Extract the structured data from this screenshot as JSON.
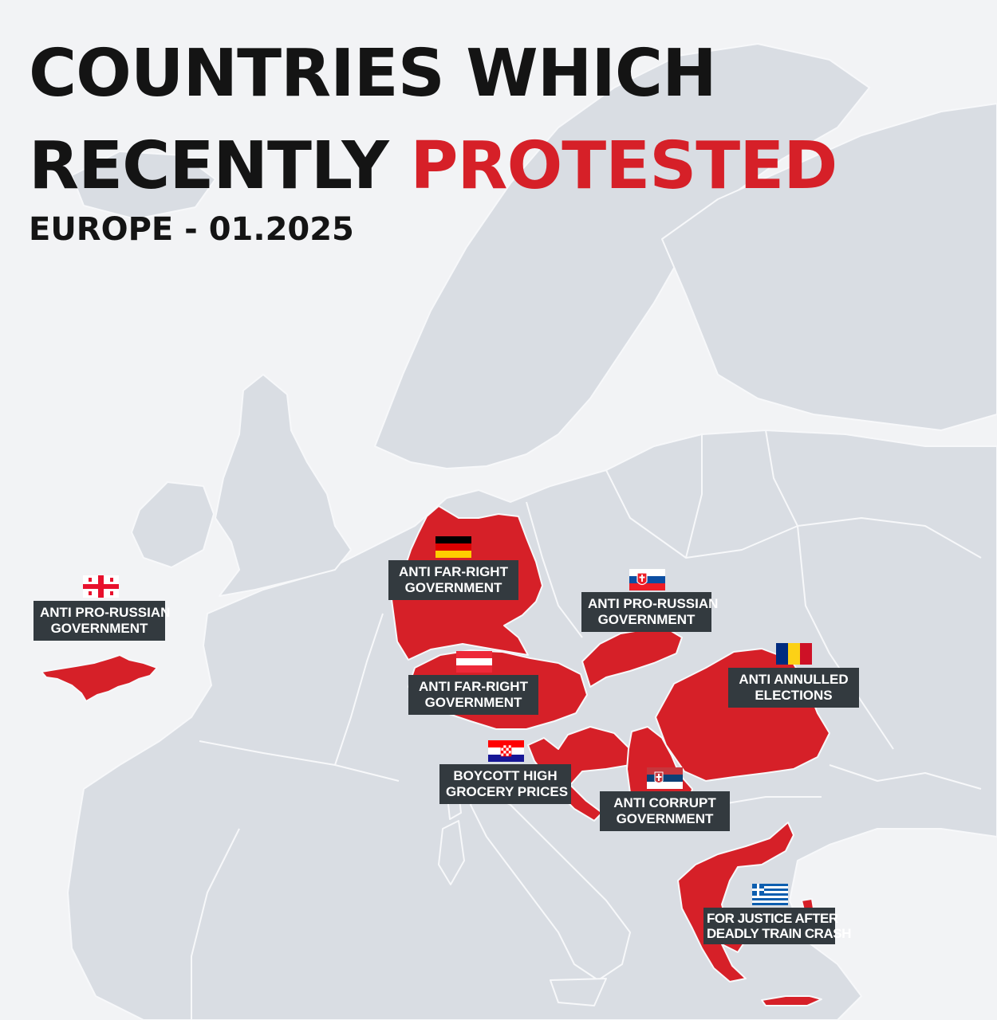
{
  "title": {
    "line1": "COUNTRIES WHICH",
    "line2_start": "RECENTLY ",
    "line2_highlight": "PROTESTED"
  },
  "subtitle": "EUROPE - 01.2025",
  "colors": {
    "background": "#f2f3f5",
    "land": "#d9dde3",
    "borders": "#f7f8fa",
    "highlight": "#d62028",
    "title": "#141414",
    "label_bg": "#333a3f",
    "label_text": "#ffffff"
  },
  "highlighted_countries": [
    "Georgia",
    "Germany",
    "Austria",
    "Slovakia",
    "Croatia",
    "Serbia",
    "Romania",
    "Greece"
  ],
  "labels": [
    {
      "country": "Georgia",
      "flag": "georgia-flag-icon",
      "line1": "ANTI PRO-RUSSIAN",
      "line2": "GOVERNMENT"
    },
    {
      "country": "Germany",
      "flag": "germany-flag-icon",
      "line1": "ANTI FAR-RIGHT",
      "line2": "GOVERNMENT"
    },
    {
      "country": "Slovakia",
      "flag": "slovakia-flag-icon",
      "line1": "ANTI PRO-RUSSIAN",
      "line2": "GOVERNMENT"
    },
    {
      "country": "Austria",
      "flag": "austria-flag-icon",
      "line1": "ANTI FAR-RIGHT",
      "line2": "GOVERNMENT"
    },
    {
      "country": "Romania",
      "flag": "romania-flag-icon",
      "line1": "ANTI ANNULLED",
      "line2": "ELECTIONS"
    },
    {
      "country": "Croatia",
      "flag": "croatia-flag-icon",
      "line1": "BOYCOTT HIGH",
      "line2": "GROCERY PRICES"
    },
    {
      "country": "Serbia",
      "flag": "serbia-flag-icon",
      "line1": "ANTI CORRUPT",
      "line2": "GOVERNMENT"
    },
    {
      "country": "Greece",
      "flag": "greece-flag-icon",
      "line1": "FOR JUSTICE AFTER",
      "line2": "DEADLY TRAIN CRASH"
    }
  ]
}
